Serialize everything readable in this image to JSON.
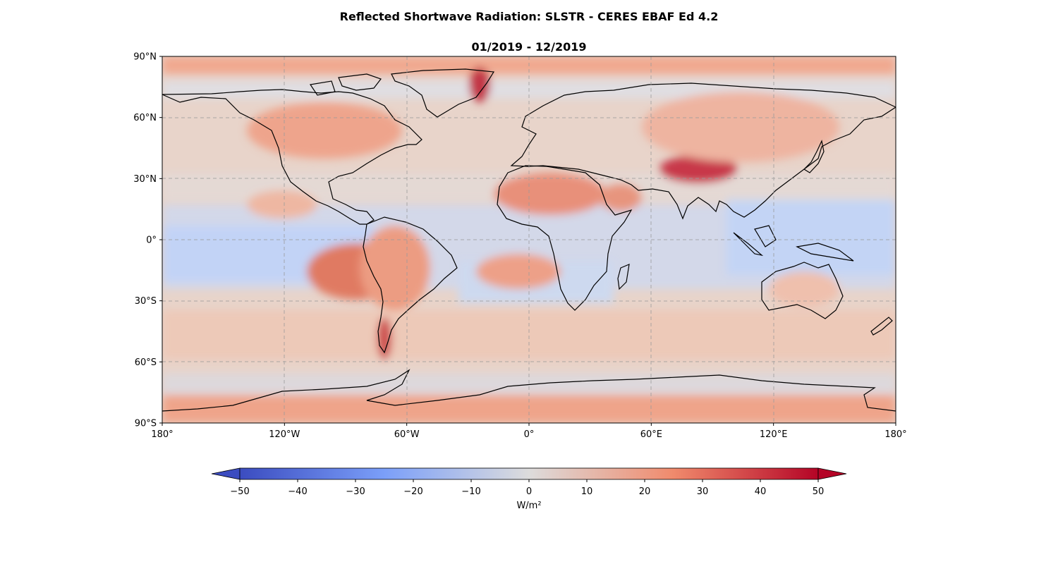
{
  "title": "Reflected Shortwave Radiation: SLSTR - CERES EBAF Ed 4.2",
  "subtitle": "01/2019 - 12/2019",
  "map": {
    "projection": "PlateCarree",
    "lon_range": [
      -180,
      180
    ],
    "lat_range": [
      -90,
      90
    ],
    "grid": true,
    "coastlines": true,
    "lat_ticks": [
      {
        "value": 90,
        "label": "90°N"
      },
      {
        "value": 60,
        "label": "60°N"
      },
      {
        "value": 30,
        "label": "30°N"
      },
      {
        "value": 0,
        "label": "0°"
      },
      {
        "value": -30,
        "label": "30°S"
      },
      {
        "value": -60,
        "label": "60°S"
      },
      {
        "value": -90,
        "label": "90°S"
      }
    ],
    "lon_ticks": [
      {
        "value": -180,
        "label": "180°"
      },
      {
        "value": -120,
        "label": "120°W"
      },
      {
        "value": -60,
        "label": "60°W"
      },
      {
        "value": 0,
        "label": "0°"
      },
      {
        "value": 60,
        "label": "60°E"
      },
      {
        "value": 120,
        "label": "120°E"
      },
      {
        "value": 180,
        "label": "180°"
      }
    ]
  },
  "colorbar": {
    "cmap": "coolwarm",
    "range": [
      -55,
      55
    ],
    "extend": "both",
    "ticks": [
      -50,
      -40,
      -30,
      -20,
      -10,
      0,
      10,
      20,
      30,
      40,
      50
    ],
    "tick_labels": [
      "−50",
      "−40",
      "−30",
      "−20",
      "−10",
      "0",
      "10",
      "20",
      "30",
      "40",
      "50"
    ],
    "units_label": "W/m²",
    "colors": [
      "#3b4cc0",
      "#6788ee",
      "#9abbff",
      "#c9d7f0",
      "#dddcdc",
      "#f7b89c",
      "#f49a7b",
      "#e7745b",
      "#c53334",
      "#b40426"
    ]
  }
}
